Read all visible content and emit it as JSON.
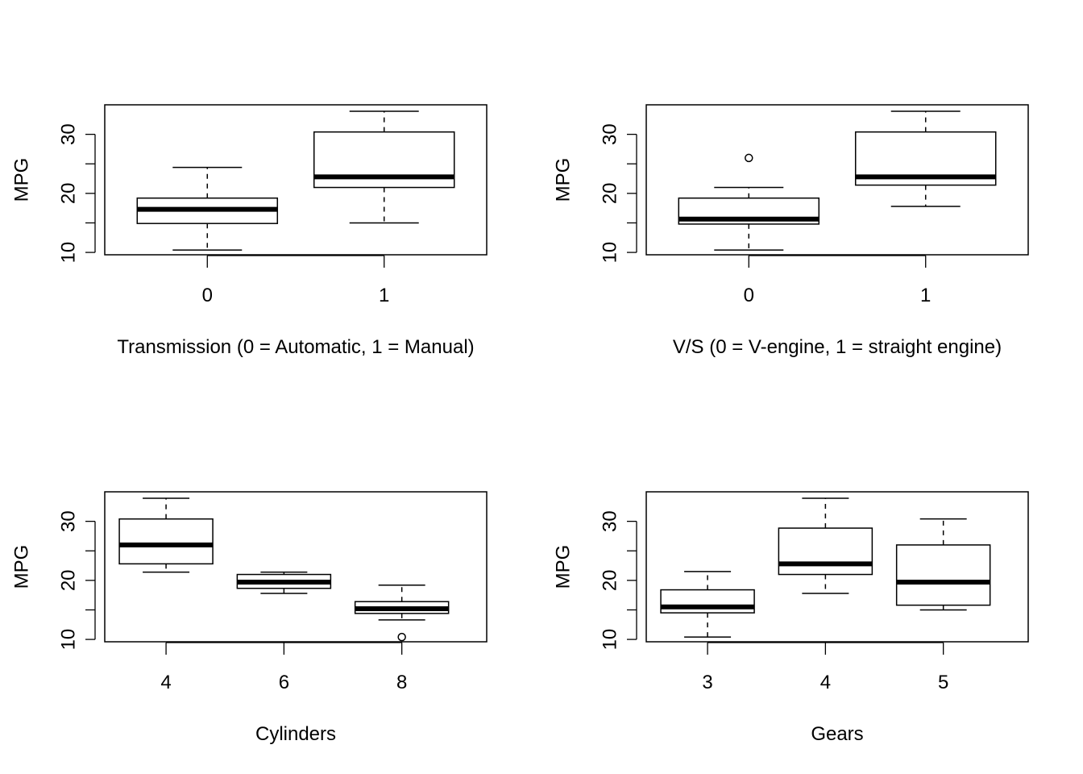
{
  "chart_data": [
    {
      "type": "boxplot",
      "xlabel": "Transmission (0 = Automatic, 1 = Manual)",
      "ylabel": "MPG",
      "categories": [
        "0",
        "1"
      ],
      "yticks": [
        "10",
        "20",
        "30"
      ],
      "ylim": [
        9.6,
        35.0
      ],
      "grid": false,
      "boxes": [
        {
          "category": "0",
          "whisker_low": 10.4,
          "q1": 14.9,
          "median": 17.3,
          "q3": 19.2,
          "whisker_high": 24.4,
          "outliers": []
        },
        {
          "category": "1",
          "whisker_low": 15.0,
          "q1": 21.0,
          "median": 22.8,
          "q3": 30.4,
          "whisker_high": 33.9,
          "outliers": []
        }
      ]
    },
    {
      "type": "boxplot",
      "xlabel": "V/S (0 = V-engine, 1 = straight engine)",
      "ylabel": "MPG",
      "categories": [
        "0",
        "1"
      ],
      "yticks": [
        "10",
        "20",
        "30"
      ],
      "ylim": [
        9.6,
        35.0
      ],
      "grid": false,
      "boxes": [
        {
          "category": "0",
          "whisker_low": 10.4,
          "q1": 14.8,
          "median": 15.65,
          "q3": 19.2,
          "whisker_high": 21.0,
          "outliers": [
            26.0
          ]
        },
        {
          "category": "1",
          "whisker_low": 17.8,
          "q1": 21.4,
          "median": 22.8,
          "q3": 30.4,
          "whisker_high": 33.9,
          "outliers": []
        }
      ]
    },
    {
      "type": "boxplot",
      "xlabel": "Cylinders",
      "ylabel": "MPG",
      "categories": [
        "4",
        "6",
        "8"
      ],
      "yticks": [
        "10",
        "20",
        "30"
      ],
      "ylim": [
        9.6,
        35.0
      ],
      "grid": false,
      "boxes": [
        {
          "category": "4",
          "whisker_low": 21.4,
          "q1": 22.8,
          "median": 26.0,
          "q3": 30.4,
          "whisker_high": 33.9,
          "outliers": []
        },
        {
          "category": "6",
          "whisker_low": 17.8,
          "q1": 18.65,
          "median": 19.7,
          "q3": 21.0,
          "whisker_high": 21.4,
          "outliers": []
        },
        {
          "category": "8",
          "whisker_low": 13.3,
          "q1": 14.4,
          "median": 15.2,
          "q3": 16.4,
          "whisker_high": 19.2,
          "outliers": [
            10.4
          ]
        }
      ]
    },
    {
      "type": "boxplot",
      "xlabel": "Gears",
      "ylabel": "MPG",
      "categories": [
        "3",
        "4",
        "5"
      ],
      "yticks": [
        "10",
        "20",
        "30"
      ],
      "ylim": [
        9.6,
        35.0
      ],
      "grid": false,
      "boxes": [
        {
          "category": "3",
          "whisker_low": 10.4,
          "q1": 14.5,
          "median": 15.5,
          "q3": 18.4,
          "whisker_high": 21.5,
          "outliers": []
        },
        {
          "category": "4",
          "whisker_low": 17.8,
          "q1": 21.0,
          "median": 22.8,
          "q3": 28.85,
          "whisker_high": 33.9,
          "outliers": []
        },
        {
          "category": "5",
          "whisker_low": 15.0,
          "q1": 15.8,
          "median": 19.7,
          "q3": 26.0,
          "whisker_high": 30.4,
          "outliers": []
        }
      ]
    }
  ]
}
